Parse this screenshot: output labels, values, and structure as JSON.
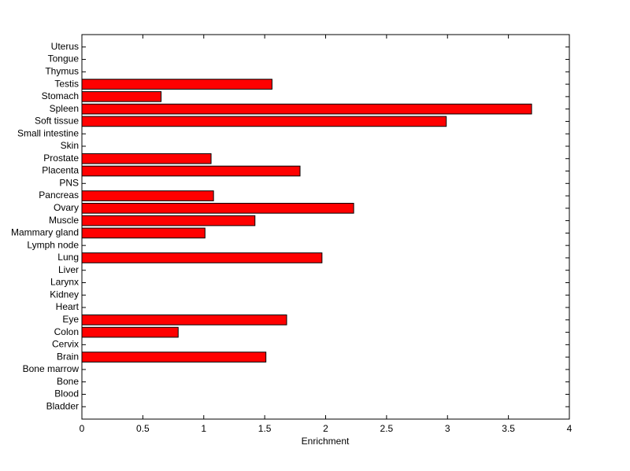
{
  "chart_data": {
    "type": "barh",
    "x_label": "Enrichment",
    "categories": [
      "Bladder",
      "Blood",
      "Bone",
      "Bone marrow",
      "Brain",
      "Cervix",
      "Colon",
      "Eye",
      "Heart",
      "Kidney",
      "Larynx",
      "Liver",
      "Lung",
      "Lymph node",
      "Mammary gland",
      "Muscle",
      "Ovary",
      "Pancreas",
      "PNS",
      "Placenta",
      "Prostate",
      "Skin",
      "Small intestine",
      "Soft tissue",
      "Spleen",
      "Stomach",
      "Testis",
      "Thymus",
      "Tongue",
      "Uterus"
    ],
    "values": [
      0,
      0,
      0,
      0,
      1.51,
      0,
      0.79,
      1.68,
      0,
      0,
      0,
      0,
      1.97,
      0,
      1.01,
      1.42,
      2.23,
      1.08,
      0,
      1.79,
      1.06,
      0,
      0,
      2.99,
      3.69,
      0.65,
      1.56,
      0,
      0,
      0
    ],
    "color": "#ff0000",
    "xlim": [
      0,
      4
    ],
    "xticks": [
      0,
      0.5,
      1,
      1.5,
      2,
      2.5,
      3,
      3.5,
      4
    ]
  }
}
